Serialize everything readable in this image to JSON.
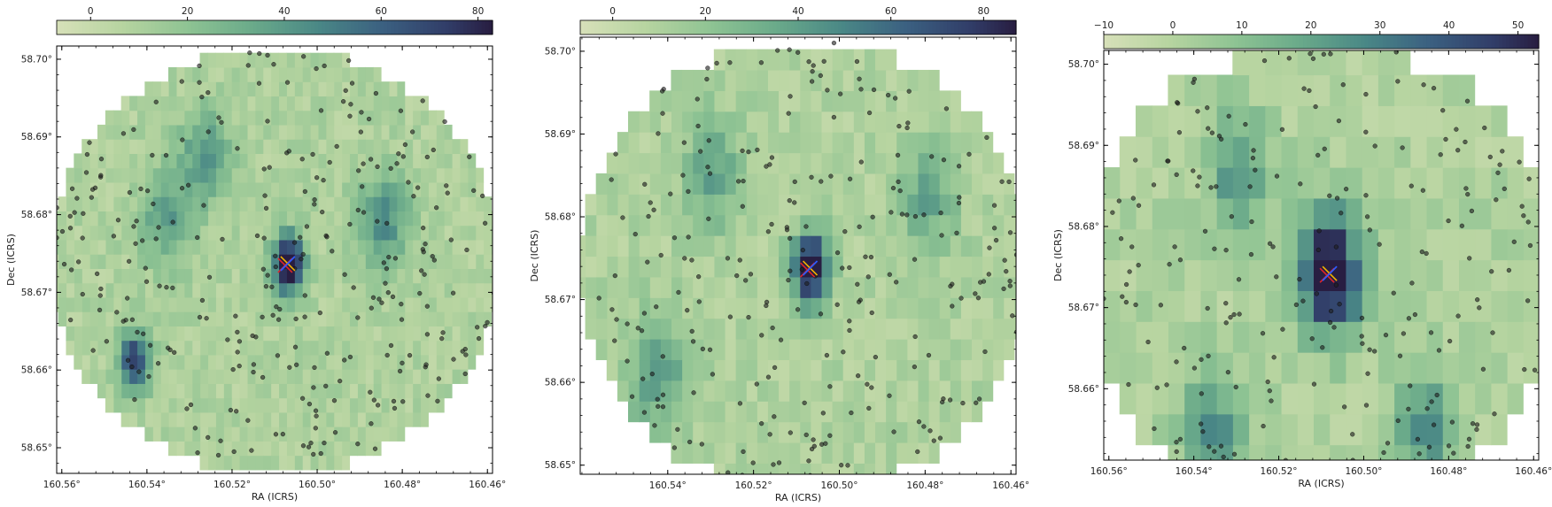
{
  "chart_data": [
    {
      "type": "heatmap",
      "xlabel": "RA (ICRS)",
      "ylabel": "Dec (ICRS)",
      "x_ticks": [
        160.56,
        160.54,
        160.52,
        160.5,
        160.48,
        160.46
      ],
      "x_tick_labels": [
        "160.56°",
        "160.54°",
        "160.52°",
        "160.50°",
        "160.48°",
        "160.46°"
      ],
      "y_ticks": [
        58.65,
        58.66,
        58.67,
        58.68,
        58.69,
        58.7
      ],
      "y_tick_labels": [
        "58.65°",
        "58.66°",
        "58.67°",
        "58.68°",
        "58.69°",
        "58.70°"
      ],
      "xlim": [
        160.5612,
        160.4588
      ],
      "ylim": [
        58.6467,
        58.7017
      ],
      "colorbar": {
        "range": [
          -7,
          83
        ],
        "ticks": [
          0,
          20,
          40,
          60,
          80
        ],
        "tick_labels": [
          "0",
          "20",
          "40",
          "60",
          "80"
        ]
      },
      "field_center": [
        160.51,
        58.674
      ],
      "field_radius_deg": 0.0275,
      "pixel_deg": 0.00185,
      "hotspots": [
        {
          "ra": 160.5069,
          "dec": 58.6737,
          "value": 83,
          "size": 0.0037
        },
        {
          "ra": 160.5429,
          "dec": 58.6613,
          "value": 58,
          "size": 0.0037
        },
        {
          "ra": 160.4845,
          "dec": 58.6795,
          "value": 30,
          "size": 0.006
        },
        {
          "ra": 160.5265,
          "dec": 58.6875,
          "value": 25,
          "size": 0.006
        },
        {
          "ra": 160.5358,
          "dec": 58.6795,
          "value": 24,
          "size": 0.006
        }
      ],
      "markers": {
        "ra": 160.5069,
        "dec": 58.6737
      },
      "n_sources": 300,
      "seed": 11
    },
    {
      "type": "heatmap",
      "xlabel": "RA (ICRS)",
      "ylabel": "Dec (ICRS)",
      "x_ticks": [
        160.54,
        160.52,
        160.5,
        160.48,
        160.46
      ],
      "x_tick_labels": [
        "160.54°",
        "160.52°",
        "160.50°",
        "160.48°",
        "160.46°"
      ],
      "y_ticks": [
        58.65,
        58.66,
        58.67,
        58.68,
        58.69,
        58.7
      ],
      "y_tick_labels": [
        "58.65°",
        "58.66°",
        "58.67°",
        "58.68°",
        "58.69°",
        "58.70°"
      ],
      "xlim": [
        160.5604,
        160.4588
      ],
      "ylim": [
        58.6489,
        58.7017
      ],
      "colorbar": {
        "range": [
          -7,
          87
        ],
        "ticks": [
          0,
          20,
          40,
          60,
          80
        ],
        "tick_labels": [
          "0",
          "20",
          "40",
          "60",
          "80"
        ]
      },
      "field_center": [
        160.508,
        58.674
      ],
      "field_radius_deg": 0.0275,
      "pixel_deg": 0.0025,
      "hotspots": [
        {
          "ra": 160.5068,
          "dec": 58.6738,
          "value": 86,
          "size": 0.0042
        },
        {
          "ra": 160.5425,
          "dec": 58.6612,
          "value": 28,
          "size": 0.0065
        },
        {
          "ra": 160.5295,
          "dec": 58.6855,
          "value": 24,
          "size": 0.0065
        },
        {
          "ra": 160.4795,
          "dec": 58.6825,
          "value": 22,
          "size": 0.0065
        }
      ],
      "markers": {
        "ra": 160.5068,
        "dec": 58.6738
      },
      "n_sources": 260,
      "seed": 23
    },
    {
      "type": "heatmap",
      "xlabel": "RA (ICRS)",
      "ylabel": "Dec (ICRS)",
      "x_ticks": [
        160.56,
        160.54,
        160.52,
        160.5,
        160.48,
        160.46
      ],
      "x_tick_labels": [
        "160.56°",
        "160.54°",
        "160.52°",
        "160.50°",
        "160.48°",
        "160.46°"
      ],
      "y_ticks": [
        58.66,
        58.67,
        58.68,
        58.69,
        58.7
      ],
      "y_tick_labels": [
        "58.66°",
        "58.67°",
        "58.68°",
        "58.69°",
        "58.70°"
      ],
      "xlim": [
        160.5612,
        160.4588
      ],
      "ylim": [
        58.6512,
        58.7017
      ],
      "colorbar": {
        "range": [
          -10,
          53
        ],
        "ticks": [
          -10,
          0,
          10,
          20,
          30,
          40,
          50
        ],
        "tick_labels": [
          "−10",
          "0",
          "10",
          "20",
          "30",
          "40",
          "50"
        ]
      },
      "field_center": [
        160.51,
        58.674
      ],
      "field_radius_deg": 0.029,
      "pixel_deg": 0.0038,
      "hotspots": [
        {
          "ra": 160.508,
          "dec": 58.6742,
          "value": 53,
          "size": 0.007
        },
        {
          "ra": 160.5355,
          "dec": 58.6545,
          "value": 18,
          "size": 0.007
        },
        {
          "ra": 160.4855,
          "dec": 58.6545,
          "value": 16,
          "size": 0.007
        },
        {
          "ra": 160.5295,
          "dec": 58.6865,
          "value": 16,
          "size": 0.007
        }
      ],
      "markers": {
        "ra": 160.508,
        "dec": 58.6742
      },
      "n_sources": 240,
      "seed": 37
    }
  ]
}
